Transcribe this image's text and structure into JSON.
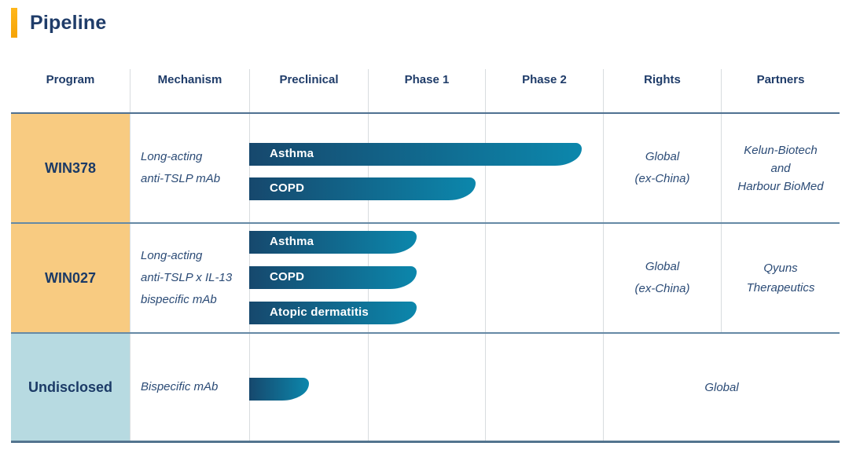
{
  "title": "Pipeline",
  "columns": [
    "Program",
    "Mechanism",
    "Preclinical",
    "Phase 1",
    "Phase 2",
    "Rights",
    "Partners"
  ],
  "rows": [
    {
      "program": "WIN378",
      "mechanism": "Long-acting\nanti-TSLP mAb",
      "bars": [
        {
          "label": "Asthma"
        },
        {
          "label": "COPD"
        }
      ],
      "rights": "Global\n(ex-China)",
      "partners": "Kelun-Biotech\nand\nHarbour BioMed"
    },
    {
      "program": "WIN027",
      "mechanism": "Long-acting\nanti-TSLP x IL-13\nbispecific mAb",
      "bars": [
        {
          "label": "Asthma"
        },
        {
          "label": "COPD"
        },
        {
          "label": "Atopic dermatitis"
        }
      ],
      "rights": "Global\n(ex-China)",
      "partners": "Qyuns\nTherapeutics"
    },
    {
      "program": "Undisclosed",
      "mechanism": "Bispecific mAb",
      "bars": [
        {
          "label": ""
        }
      ],
      "rights_partners_merged": "Global"
    }
  ],
  "chart_data": {
    "type": "bar",
    "title": "Pipeline",
    "stages": [
      "Preclinical",
      "Phase 1",
      "Phase 2"
    ],
    "scale_note": "Bar extent on 0-3 phase scale: 0 = start of Preclinical, 1 = start of Phase 1, 2 = start of Phase 2, 3 = end of Phase 2",
    "series": [
      {
        "program": "WIN378",
        "indication": "Asthma",
        "end_phase_value": 2.8,
        "furthest_stage": "Phase 2"
      },
      {
        "program": "WIN378",
        "indication": "COPD",
        "end_phase_value": 1.9,
        "furthest_stage": "Phase 1"
      },
      {
        "program": "WIN027",
        "indication": "Asthma",
        "end_phase_value": 1.4,
        "furthest_stage": "Phase 1"
      },
      {
        "program": "WIN027",
        "indication": "COPD",
        "end_phase_value": 1.4,
        "furthest_stage": "Phase 1"
      },
      {
        "program": "WIN027",
        "indication": "Atopic dermatitis",
        "end_phase_value": 1.4,
        "furthest_stage": "Phase 1"
      },
      {
        "program": "Undisclosed",
        "indication": "",
        "end_phase_value": 0.5,
        "furthest_stage": "Preclinical"
      }
    ],
    "legend_position": "none",
    "grid": "vertical column dividers only"
  },
  "colors": {
    "accent_yellow": "#f9ac0d",
    "navy_text": "#1f3c69",
    "italic_text": "#2b4b76",
    "program_cell_orange": "#f8cb81",
    "program_cell_blue": "#b7dae1",
    "bar_gradient_start": "#16486d",
    "bar_gradient_end": "#0c87ac",
    "header_line": "#4f7191",
    "row_line": "#6589a5",
    "column_divider": "#d8dcdf",
    "bar_label_text": "#ffffff"
  }
}
